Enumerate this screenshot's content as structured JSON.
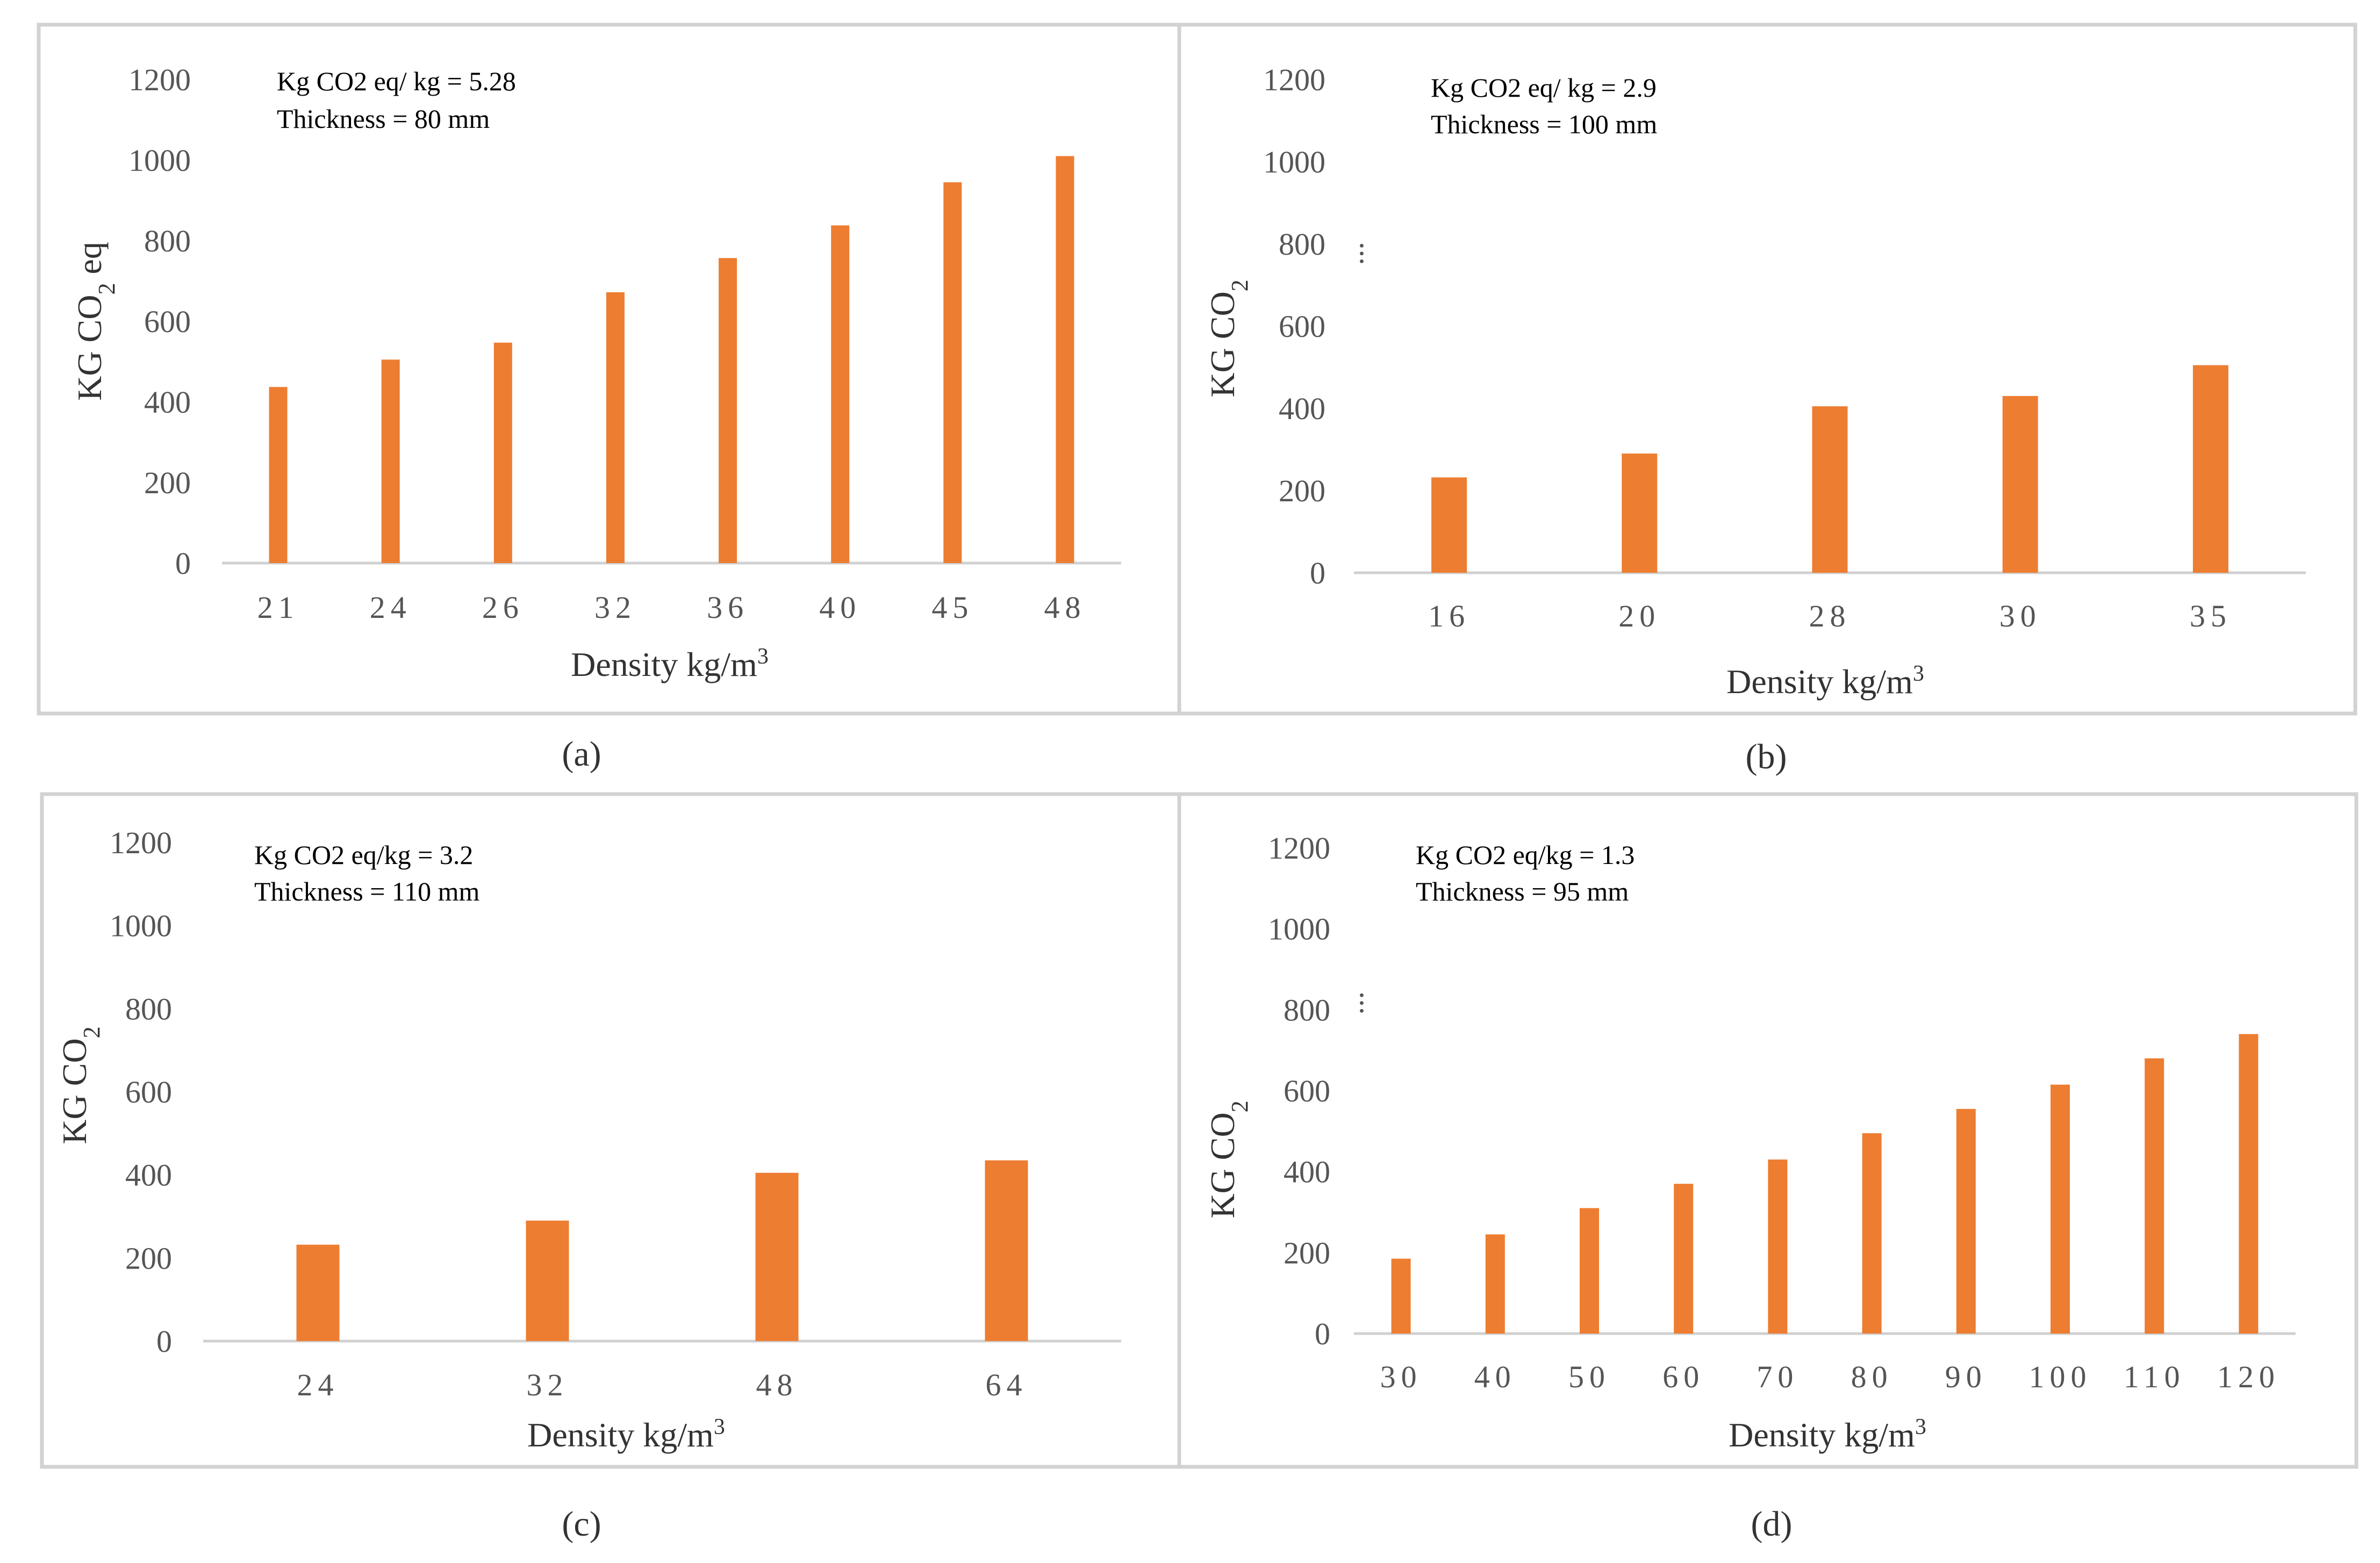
{
  "chart_data": [
    {
      "type": "bar",
      "panel": "(a)",
      "annotation": [
        "Kg CO2 eq/ kg = 5.28",
        "Thickness = 80 mm"
      ],
      "xlabel": "Density kg/m3",
      "ylabel": "KG CO2 eq",
      "ylim": [
        0,
        1200
      ],
      "yticks": [
        0,
        200,
        400,
        600,
        800,
        1000,
        1200
      ],
      "categories": [
        "21",
        "24",
        "26",
        "32",
        "36",
        "40",
        "45",
        "48"
      ],
      "values": [
        437,
        505,
        547,
        672,
        757,
        838,
        945,
        1010
      ],
      "color": "#ed7d31"
    },
    {
      "type": "bar",
      "panel": "(b)",
      "annotation": [
        "Kg CO2 eq/ kg = 2.9",
        "Thickness = 100 mm"
      ],
      "xlabel": "Density kg/m3",
      "ylabel": "KG CO2",
      "ylim": [
        0,
        1200
      ],
      "yticks": [
        0,
        200,
        400,
        600,
        800,
        1000,
        1200
      ],
      "categories": [
        "16",
        "20",
        "28",
        "30",
        "35"
      ],
      "values": [
        232,
        290,
        405,
        430,
        505
      ],
      "color": "#ed7d31"
    },
    {
      "type": "bar",
      "panel": "(c)",
      "annotation": [
        "Kg CO2 eq/kg = 3.2",
        "Thickness = 110 mm"
      ],
      "xlabel": "Density kg/m3",
      "ylabel": "KG CO2",
      "ylim": [
        0,
        1200
      ],
      "yticks": [
        0,
        200,
        400,
        600,
        800,
        1000,
        1200
      ],
      "categories": [
        "24",
        "32",
        "48",
        "64"
      ],
      "values": [
        232,
        290,
        405,
        435
      ],
      "color": "#ed7d31"
    },
    {
      "type": "bar",
      "panel": "(d)",
      "annotation": [
        "Kg CO2 eq/kg = 1.3",
        "Thickness = 95 mm"
      ],
      "xlabel": "Density kg/m3",
      "ylabel": "KG CO2",
      "ylim": [
        0,
        1200
      ],
      "yticks": [
        0,
        200,
        400,
        600,
        800,
        1000,
        1200
      ],
      "categories": [
        "30",
        "40",
        "50",
        "60",
        "70",
        "80",
        "90",
        "100",
        "110",
        "120"
      ],
      "values": [
        185,
        245,
        310,
        370,
        430,
        495,
        555,
        615,
        680,
        740
      ],
      "color": "#ed7d31"
    }
  ]
}
